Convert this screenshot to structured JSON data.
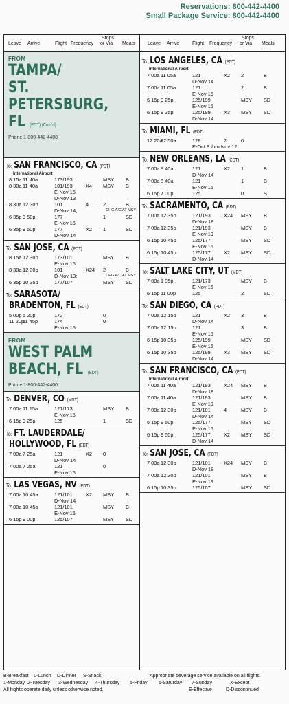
{
  "header": {
    "reservations": "Reservations: 800-442-4400",
    "small_package": "Small Package Service: 800-442-4400"
  },
  "column_headers": {
    "leave": "Leave",
    "arrive": "Arrive",
    "flight": "Flight",
    "frequency": "Frequency",
    "stops_top": "Stops",
    "stops_bottom": "or Via",
    "meals": "Meals"
  },
  "left": {
    "origin1": {
      "from": "FROM",
      "lines": [
        "TAMPA/",
        "ST.",
        "PETERSBURG,",
        "FL"
      ],
      "tz": "(EDT) (Cont'd)",
      "phone": "Phone 1-800-442-4400"
    },
    "destinations1": [
      {
        "to": "To:",
        "name": "SAN FRANCISCO, CA",
        "tz": "(PDT)",
        "sub": "International Airport",
        "flights": [
          {
            "leave": "8 15a",
            "arrive": "11 40a",
            "flight": "173/193",
            "freq": "",
            "stops": "MSY",
            "meals": "B",
            "notes": []
          },
          {
            "leave": "8 30a",
            "arrive": "11 40a",
            "flight": "101/193",
            "freq": "X4",
            "stops": "MSY",
            "meals": "B",
            "notes": [
              "E-Nov 15",
              "D-Nov 13"
            ]
          },
          {
            "leave": "8 30a",
            "arrive": "12 30p",
            "flight": "101",
            "freq": "4",
            "stops": "2",
            "meals": "B",
            "notes": [
              "D-Nov 14;"
            ],
            "chg": "CHG A/C AT MSY"
          },
          {
            "leave": "6 35p",
            "arrive": "9 50p",
            "flight": "177",
            "freq": "",
            "stops": "1",
            "meals": "SD",
            "notes": [
              "E-Nov 15"
            ]
          },
          {
            "leave": "6 35p",
            "arrive": "9 50p",
            "flight": "177",
            "freq": "X2",
            "stops": "1",
            "meals": "SD",
            "notes": [
              "D-Nov 14"
            ]
          }
        ]
      },
      {
        "to": "To:",
        "name": "SAN JOSE, CA",
        "tz": "(PDT)",
        "sub": "",
        "flights": [
          {
            "leave": "8 15a",
            "arrive": "12 30p",
            "flight": "173/101",
            "freq": "",
            "stops": "MSY",
            "meals": "B",
            "notes": [
              "E-Nov 15"
            ]
          },
          {
            "leave": "8 30a",
            "arrive": "12 30p",
            "flight": "101",
            "freq": "X24",
            "stops": "2",
            "meals": "B",
            "notes": [
              "D-Nov 13;"
            ],
            "chg": "CHG A/C AT MSY"
          },
          {
            "leave": "6 35p",
            "arrive": "10 35p",
            "flight": "177/107",
            "freq": "",
            "stops": "MSY",
            "meals": "SD",
            "notes": []
          }
        ]
      },
      {
        "to": "To:",
        "name": "SARASOTA/",
        "name2": "BRADENTON, FL",
        "tz": "(EDT)",
        "sub": "",
        "flights": [
          {
            "leave": "5 00p",
            "arrive": "5 20p",
            "flight": "172",
            "freq": "",
            "stops": "0",
            "meals": "",
            "notes": []
          },
          {
            "leave": "11 20p",
            "arrive": "11 45p",
            "flight": "174",
            "freq": "",
            "stops": "0",
            "meals": "",
            "notes": [
              "E-Nov 15"
            ]
          }
        ]
      }
    ],
    "origin2": {
      "from": "FROM",
      "lines": [
        "WEST PALM",
        "BEACH, FL"
      ],
      "tz": "(EDT)",
      "phone": "Phone 1-800-442-4400"
    },
    "destinations2": [
      {
        "to": "To:",
        "name": "DENVER, CO",
        "tz": "(MDT)",
        "sub": "",
        "flights": [
          {
            "leave": "7 00a",
            "arrive": "11 15a",
            "flight": "121/173",
            "freq": "",
            "stops": "MSY",
            "meals": "B",
            "notes": [
              "E-Nov 15"
            ]
          },
          {
            "leave": "6 15p",
            "arrive": "9 25p",
            "flight": "125",
            "freq": "",
            "stops": "1",
            "meals": "SD",
            "notes": []
          }
        ]
      },
      {
        "to": "To:",
        "name": "FT. LAUDERDALE/",
        "name2": "HOLLYWOOD, FL",
        "tz": "(EDT)",
        "sub": "",
        "flights": [
          {
            "leave": "7 00a",
            "arrive": "7 25a",
            "flight": "121",
            "freq": "X2",
            "stops": "0",
            "meals": "",
            "notes": [
              "D-Nov 14"
            ]
          },
          {
            "leave": "7 00a",
            "arrive": "7 25a",
            "flight": "121",
            "freq": "",
            "stops": "0",
            "meals": "",
            "notes": [
              "E-Nov 15"
            ]
          }
        ]
      },
      {
        "to": "To:",
        "name": "LAS VEGAS, NV",
        "tz": "(PDT)",
        "sub": "",
        "flights": [
          {
            "leave": "7 00a",
            "arrive": "10 45a",
            "flight": "121/101",
            "freq": "X2",
            "stops": "MSY",
            "meals": "B",
            "notes": [
              "D-Nov 14"
            ]
          },
          {
            "leave": "7 00a",
            "arrive": "10 45a",
            "flight": "121/101",
            "freq": "",
            "stops": "MSY",
            "meals": "B",
            "notes": [
              "E-Nov 15"
            ]
          },
          {
            "leave": "6 15p",
            "arrive": "9 00p",
            "flight": "125/107",
            "freq": "",
            "stops": "MSY",
            "meals": "SD",
            "notes": []
          }
        ]
      }
    ]
  },
  "right": {
    "destinations": [
      {
        "to": "To:",
        "name": "LOS ANGELES, CA",
        "tz": "(PDT)",
        "sub": "International Airport",
        "flights": [
          {
            "leave": "7 00a",
            "arrive": "11 05a",
            "flight": "121",
            "freq": "X2",
            "stops": "2",
            "meals": "B",
            "notes": [
              "D-Nov 14"
            ]
          },
          {
            "leave": "7 00a",
            "arrive": "11 05a",
            "flight": "121",
            "freq": "",
            "stops": "2",
            "meals": "B",
            "notes": [
              "E-Nov 15"
            ]
          },
          {
            "leave": "6 15p",
            "arrive": "9 25p",
            "flight": "125/199",
            "freq": "",
            "stops": "MSY",
            "meals": "SD",
            "notes": [
              "E-Nov 15"
            ]
          },
          {
            "leave": "6 15p",
            "arrive": "9 25p",
            "flight": "125/199",
            "freq": "X3",
            "stops": "MSY",
            "meals": "SD",
            "notes": [
              "D-Nov 14"
            ]
          }
        ]
      },
      {
        "to": "To:",
        "name": "MIAMI, FL",
        "tz": "(EDT)",
        "sub": "",
        "flights": [
          {
            "leave": "12 20a",
            "arrive": "12 50a",
            "flight": "128",
            "freq": "2",
            "stops": "0",
            "meals": "",
            "notes": [
              "E-Oct 8 thru Nov 12"
            ]
          }
        ]
      },
      {
        "to": "To:",
        "name": "NEW ORLEANS, LA",
        "tz": "(CDT)",
        "sub": "",
        "flights": [
          {
            "leave": "7 00a",
            "arrive": "8 40a",
            "flight": "121",
            "freq": "X2",
            "stops": "1",
            "meals": "B",
            "notes": [
              "D-Nov 14"
            ]
          },
          {
            "leave": "7 00a",
            "arrive": "8 40a",
            "flight": "121",
            "freq": "",
            "stops": "1",
            "meals": "B",
            "notes": [
              "E-Nov 15"
            ]
          },
          {
            "leave": "6 15p",
            "arrive": "7 00p",
            "flight": "125",
            "freq": "",
            "stops": "0",
            "meals": "S",
            "notes": []
          }
        ]
      },
      {
        "to": "To:",
        "name": "SACRAMENTO, CA",
        "tz": "(PDT)",
        "sub": "",
        "flights": [
          {
            "leave": "7 00a",
            "arrive": "12 35p",
            "flight": "121/193",
            "freq": "X24",
            "stops": "MSY",
            "meals": "B",
            "notes": [
              "D-Nov 18"
            ]
          },
          {
            "leave": "7 00a",
            "arrive": "12 35p",
            "flight": "121/193",
            "freq": "",
            "stops": "MSY",
            "meals": "B",
            "notes": [
              "E-Nov 19"
            ]
          },
          {
            "leave": "6 15p",
            "arrive": "10 45p",
            "flight": "125/177",
            "freq": "",
            "stops": "MSY",
            "meals": "SD",
            "notes": [
              "E-Nov 15"
            ]
          },
          {
            "leave": "6 15p",
            "arrive": "10 45p",
            "flight": "125/177",
            "freq": "X2",
            "stops": "MSY",
            "meals": "SD",
            "notes": [
              "D-Nov 14"
            ]
          }
        ]
      },
      {
        "to": "To:",
        "name": "SALT LAKE CITY, UT",
        "tz": "(MDT)",
        "sub": "",
        "flights": [
          {
            "leave": "7 00a",
            "arrive": "1 05p",
            "flight": "121/173",
            "freq": "",
            "stops": "MSY",
            "meals": "B",
            "notes": [
              "E-Nov 15"
            ]
          },
          {
            "leave": "6 15p",
            "arrive": "11 00p",
            "flight": "125",
            "freq": "",
            "stops": "2",
            "meals": "SD",
            "notes": []
          }
        ]
      },
      {
        "to": "To:",
        "name": "SAN DIEGO, CA",
        "tz": "(PDT)",
        "sub": "",
        "flights": [
          {
            "leave": "7 00a",
            "arrive": "12 15p",
            "flight": "121",
            "freq": "X2",
            "stops": "3",
            "meals": "B",
            "notes": [
              "D-Nov 14"
            ]
          },
          {
            "leave": "7 00a",
            "arrive": "12 15p",
            "flight": "121",
            "freq": "",
            "stops": "3",
            "meals": "B",
            "notes": [
              "E-Nov 15"
            ]
          },
          {
            "leave": "6 15p",
            "arrive": "10 35p",
            "flight": "125/199",
            "freq": "",
            "stops": "MSY",
            "meals": "SD",
            "notes": [
              "E-Nov 15"
            ]
          },
          {
            "leave": "6 15p",
            "arrive": "10 35p",
            "flight": "125/199",
            "freq": "X3",
            "stops": "MSY",
            "meals": "SD",
            "notes": [
              "D-Nov 14"
            ]
          }
        ]
      },
      {
        "to": "To:",
        "name": "SAN FRANCISCO, CA",
        "tz": "(PDT)",
        "sub": "International Airport",
        "flights": [
          {
            "leave": "7 00a",
            "arrive": "11 40a",
            "flight": "121/193",
            "freq": "X24",
            "stops": "MSY",
            "meals": "B",
            "notes": [
              "D-Nov 18"
            ]
          },
          {
            "leave": "7 00a",
            "arrive": "11 40a",
            "flight": "121/193",
            "freq": "",
            "stops": "MSY",
            "meals": "B",
            "notes": [
              "E-Nov 19"
            ]
          },
          {
            "leave": "7 00a",
            "arrive": "12 30p",
            "flight": "121/101",
            "freq": "4",
            "stops": "MSY",
            "meals": "B",
            "notes": [
              "D-Nov 14"
            ]
          },
          {
            "leave": "6 15p",
            "arrive": "9 50p",
            "flight": "125/177",
            "freq": "",
            "stops": "MSY",
            "meals": "SD",
            "notes": [
              "E-Nov 15"
            ]
          },
          {
            "leave": "6 15p",
            "arrive": "9 50p",
            "flight": "125/177",
            "freq": "X2",
            "stops": "MSY",
            "meals": "SD",
            "notes": [
              "D-Nov 14"
            ]
          }
        ]
      },
      {
        "to": "To:",
        "name": "SAN JOSE, CA",
        "tz": "(PDT)",
        "sub": "",
        "flights": [
          {
            "leave": "7 00a",
            "arrive": "12 30p",
            "flight": "121/101",
            "freq": "X24",
            "stops": "MSY",
            "meals": "B",
            "notes": [
              "D-Nov 18"
            ]
          },
          {
            "leave": "7 00a",
            "arrive": "12 30p",
            "flight": "121/101",
            "freq": "",
            "stops": "MSY",
            "meals": "B",
            "notes": [
              "E-Nov 19"
            ]
          },
          {
            "leave": "6 15p",
            "arrive": "10 35p",
            "flight": "125/107",
            "freq": "",
            "stops": "MSY",
            "meals": "SD",
            "notes": []
          }
        ]
      }
    ]
  },
  "footer": {
    "meals_legend": [
      "B-Breakfast",
      "L-Lunch",
      "D-Dinner",
      "S-Snack"
    ],
    "beverage": "Appropriate beverage service available on all flights.",
    "days_legend": [
      "1-Monday",
      "2-Tuesday",
      "3-Wednesday",
      "4-Thursday",
      "5-Friday",
      "6-Saturday",
      "7-Sunday",
      "X-Except"
    ],
    "daily_note": "All flights operate daily unless otherwise noted.",
    "effective": "E-Effective",
    "discontinued": "D-Discontinued"
  },
  "colors": {
    "brand_green": "#2e6f57",
    "origin_panel": "#dde8e4"
  }
}
